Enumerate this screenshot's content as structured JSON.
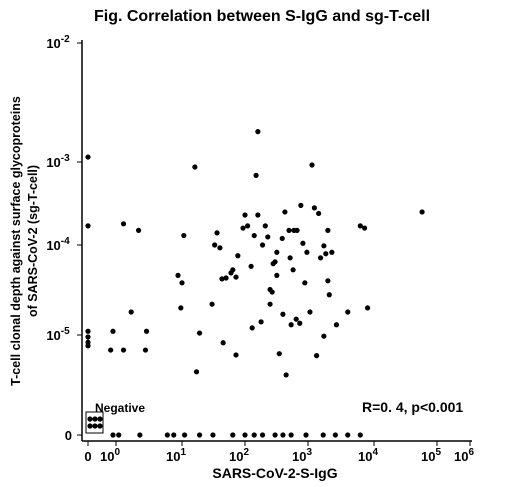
{
  "chart_data": {
    "type": "scatter",
    "title": "Fig.  Correlation between S-IgG and sg-T-cell",
    "xlabel": "SARS-CoV-2-S-IgG",
    "ylabel": [
      "T-cell clonal depth against surface glycoproteins",
      "of SARS-CoV-2 (sg-T-cell)"
    ],
    "annotations": [
      "Negative",
      "R=0. 4,   p<0.001"
    ],
    "xscale": "log",
    "yscale": "log",
    "color": "#000000",
    "xticks": [
      0,
      {
        "value": 1,
        "label": "10",
        "sup": "0"
      },
      {
        "value": 10,
        "label": "10",
        "sup": "1"
      },
      {
        "value": 100,
        "label": "10",
        "sup": "2"
      },
      {
        "value": 1000,
        "label": "10",
        "sup": "3"
      },
      {
        "value": 10000,
        "label": "10",
        "sup": "4"
      },
      {
        "value": 100000,
        "label": "10",
        "sup": "5"
      },
      {
        "value": 1000000,
        "label": "10",
        "sup": "6"
      }
    ],
    "yticks": [
      0,
      {
        "value": 1e-05,
        "label": "10",
        "sup": "-5"
      },
      {
        "value": 0.0001,
        "label": "10",
        "sup": "-4"
      },
      {
        "value": 0.001,
        "label": "10",
        "sup": "-3"
      },
      {
        "value": 0.01,
        "label": "10",
        "sup": "-2"
      }
    ],
    "x": [
      0,
      0,
      0,
      0,
      0,
      0,
      0.9,
      0.83,
      1.3,
      1.3,
      2.2,
      1.7,
      2.8,
      2.9,
      8.7,
      9.6,
      10,
      10.7,
      16,
      17,
      19,
      30,
      33,
      36,
      40,
      43,
      50,
      60,
      64,
      72,
      77,
      93,
      100,
      110,
      125,
      130,
      140,
      150,
      160,
      160,
      180,
      190,
      210,
      230,
      250,
      250,
      270,
      280,
      300,
      320,
      320,
      350,
      390,
      400,
      430,
      500,
      520,
      540,
      580,
      600,
      650,
      670,
      740,
      770,
      830,
      890,
      960,
      1070,
      1150,
      1250,
      1350,
      1450,
      1550,
      1740,
      1860,
      2000,
      2100,
      1740,
      2000,
      2300,
      2700,
      4000,
      6200,
      7200,
      450,
      72,
      45,
      8000,
      58000,
      0.9,
      1.1,
      2.3,
      6,
      7.5,
      11,
      19,
      31,
      64,
      100,
      140,
      190,
      300,
      400,
      540,
      930,
      1700,
      2600,
      4000,
      6200,
      0,
      0,
      0,
      0,
      0,
      0
    ],
    "y": [
      0.0011,
      0.00017,
      1.1e-05,
      9.5e-06,
      8.3e-06,
      7.6e-06,
      1.1e-05,
      6.8e-06,
      6.8e-06,
      0.00018,
      0.00015,
      1.8e-05,
      6.8e-06,
      1.1e-05,
      4.6e-05,
      2e-05,
      3.8e-05,
      0.00013,
      0.00087,
      3.9e-06,
      1.05e-05,
      2.2e-05,
      0.0001,
      0.00014,
      9.3e-05,
      4.2e-05,
      4.3e-05,
      4.9e-05,
      5.3e-05,
      4.4e-05,
      7.6e-05,
      0.00016,
      0.00023,
      0.00017,
      5.8e-05,
      1.2e-05,
      0.00013,
      0.00069,
      0.0018,
      0.00023,
      1.4e-05,
      0.0001,
      0.00017,
      0.000125,
      2.2e-05,
      3.2e-05,
      3e-05,
      6.2e-05,
      6.5e-05,
      4.6e-05,
      8.3e-05,
      6.2e-06,
      0.00012,
      1.7e-05,
      0.00025,
      0.00015,
      7.2e-05,
      1.3e-05,
      5.3e-05,
      0.00015,
      1.5e-05,
      0.00015,
      1.35e-05,
      0.0003,
      0.000105,
      3.8e-05,
      8.3e-05,
      1.8e-05,
      0.00092,
      0.00028,
      5.9e-06,
      0.00024,
      7.2e-05,
      9.8e-05,
      8e-05,
      0.00015,
      2.8e-05,
      9.7e-06,
      4e-05,
      8.3e-05,
      1.3e-05,
      1.8e-05,
      0.00017,
      0.00016,
      3.6e-06,
      6e-06,
      8.2e-06,
      2e-05,
      0.00025,
      0,
      0,
      0,
      0,
      0,
      0,
      0,
      0,
      0,
      0,
      0,
      0,
      0,
      0,
      0,
      0,
      0,
      0,
      0,
      0,
      0,
      0,
      0,
      0,
      0,
      0
    ]
  }
}
